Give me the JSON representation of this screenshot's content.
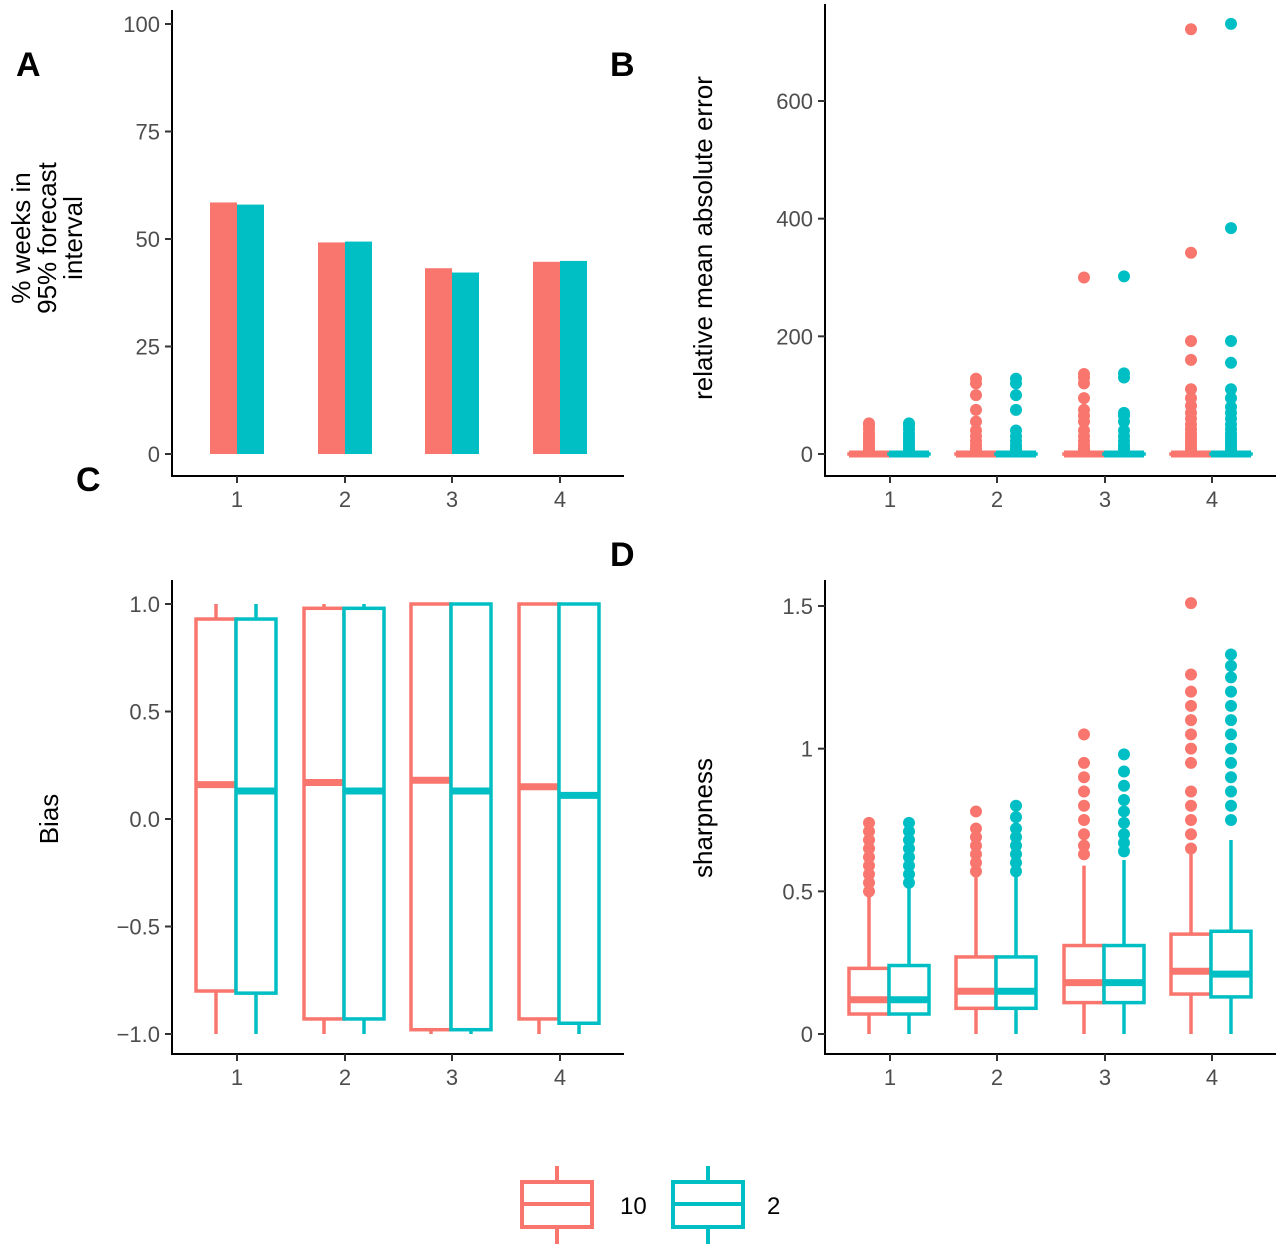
{
  "colors": {
    "s10": "#F8766D",
    "s2": "#00BFC4"
  },
  "legend": {
    "items": [
      {
        "label": "10",
        "color": "#F8766D"
      },
      {
        "label": "2",
        "color": "#00BFC4"
      }
    ]
  },
  "chart_data": [
    {
      "panel": "A",
      "type": "bar",
      "categories": [
        "1",
        "2",
        "3",
        "4"
      ],
      "ylabel": [
        "% weeks in",
        "95% forecast",
        "interval"
      ],
      "ylim": [
        0,
        100
      ],
      "yticks": [
        0,
        25,
        50,
        75,
        100
      ],
      "series": [
        {
          "name": "10",
          "values": [
            58.5,
            49.2,
            43.2,
            44.7
          ]
        },
        {
          "name": "2",
          "values": [
            58.0,
            49.4,
            42.2,
            44.9
          ]
        }
      ]
    },
    {
      "panel": "B",
      "type": "box",
      "categories": [
        "1",
        "2",
        "3",
        "4"
      ],
      "ylabel": "relative mean absolute error",
      "ylim": [
        -35,
        760
      ],
      "yticks": [
        0,
        200,
        400,
        600
      ],
      "series": [
        {
          "name": "10",
          "groups": [
            {
              "min": 0,
              "q1": 0,
              "median": 0,
              "q3": 0,
              "max": 3,
              "outliers": [
                6,
                10,
                15,
                20,
                25,
                30,
                35,
                42,
                48,
                52
              ]
            },
            {
              "min": 0,
              "q1": 0,
              "median": 0,
              "q3": 0,
              "max": 3,
              "outliers": [
                6,
                10,
                15,
                22,
                30,
                40,
                55,
                75,
                100,
                120,
                128
              ]
            },
            {
              "min": 0,
              "q1": 0,
              "median": 0,
              "q3": 0,
              "max": 3,
              "outliers": [
                6,
                10,
                15,
                22,
                30,
                40,
                55,
                65,
                75,
                95,
                120,
                130,
                136,
                300
              ]
            },
            {
              "min": 0,
              "q1": 0,
              "median": 0,
              "q3": 0,
              "max": 3,
              "outliers": [
                6,
                10,
                15,
                20,
                25,
                30,
                35,
                42,
                50,
                60,
                70,
                82,
                95,
                110,
                160,
                192,
                342,
                722
              ]
            }
          ]
        },
        {
          "name": "2",
          "groups": [
            {
              "min": 0,
              "q1": 0,
              "median": 0,
              "q3": 0,
              "max": 3,
              "outliers": [
                6,
                10,
                15,
                20,
                25,
                30,
                35,
                42,
                48,
                52
              ]
            },
            {
              "min": 0,
              "q1": 0,
              "median": 0,
              "q3": 0,
              "max": 3,
              "outliers": [
                6,
                10,
                15,
                22,
                30,
                40,
                75,
                100,
                120,
                128
              ]
            },
            {
              "min": 0,
              "q1": 0,
              "median": 0,
              "q3": 0,
              "max": 3,
              "outliers": [
                6,
                10,
                15,
                22,
                30,
                40,
                55,
                65,
                70,
                130,
                137,
                302
              ]
            },
            {
              "min": 0,
              "q1": 0,
              "median": 0,
              "q3": 0,
              "max": 3,
              "outliers": [
                6,
                10,
                15,
                20,
                25,
                30,
                35,
                42,
                50,
                60,
                70,
                80,
                95,
                110,
                155,
                192,
                384,
                731
              ]
            }
          ]
        }
      ]
    },
    {
      "panel": "C",
      "type": "box",
      "categories": [
        "1",
        "2",
        "3",
        "4"
      ],
      "ylabel": "Bias",
      "ylim": [
        -1.1,
        1.1
      ],
      "yticks": [
        -1.0,
        -0.5,
        0.0,
        0.5,
        1.0
      ],
      "yticklabels": [
        "−1.0",
        "−0.5",
        "0.0",
        "0.5",
        "1.0"
      ],
      "series": [
        {
          "name": "10",
          "groups": [
            {
              "min": -1.0,
              "q1": -0.8,
              "median": 0.16,
              "q3": 0.93,
              "max": 1.0,
              "outliers": []
            },
            {
              "min": -1.0,
              "q1": -0.93,
              "median": 0.17,
              "q3": 0.98,
              "max": 1.0,
              "outliers": []
            },
            {
              "min": -1.0,
              "q1": -0.98,
              "median": 0.18,
              "q3": 1.0,
              "max": 1.0,
              "outliers": []
            },
            {
              "min": -1.0,
              "q1": -0.93,
              "median": 0.15,
              "q3": 1.0,
              "max": 1.0,
              "outliers": []
            }
          ]
        },
        {
          "name": "2",
          "groups": [
            {
              "min": -1.0,
              "q1": -0.81,
              "median": 0.13,
              "q3": 0.93,
              "max": 1.0,
              "outliers": []
            },
            {
              "min": -1.0,
              "q1": -0.93,
              "median": 0.13,
              "q3": 0.98,
              "max": 1.0,
              "outliers": []
            },
            {
              "min": -1.0,
              "q1": -0.98,
              "median": 0.13,
              "q3": 1.0,
              "max": 1.0,
              "outliers": []
            },
            {
              "min": -1.0,
              "q1": -0.95,
              "median": 0.11,
              "q3": 1.0,
              "max": 1.0,
              "outliers": []
            }
          ]
        }
      ]
    },
    {
      "panel": "D",
      "type": "box",
      "categories": [
        "1",
        "2",
        "3",
        "4"
      ],
      "ylabel": "sharpness",
      "ylim": [
        -0.04,
        1.6
      ],
      "yticks": [
        0.0,
        0.5,
        1.0,
        1.5
      ],
      "series": [
        {
          "name": "10",
          "groups": [
            {
              "min": 0.0,
              "q1": 0.07,
              "median": 0.12,
              "q3": 0.23,
              "max": 0.48,
              "outliers": [
                0.5,
                0.53,
                0.56,
                0.59,
                0.62,
                0.65,
                0.68,
                0.71,
                0.74
              ]
            },
            {
              "min": 0.0,
              "q1": 0.09,
              "median": 0.15,
              "q3": 0.27,
              "max": 0.55,
              "outliers": [
                0.57,
                0.6,
                0.63,
                0.66,
                0.69,
                0.72,
                0.78
              ]
            },
            {
              "min": 0.0,
              "q1": 0.11,
              "median": 0.18,
              "q3": 0.31,
              "max": 0.59,
              "outliers": [
                0.63,
                0.66,
                0.7,
                0.75,
                0.8,
                0.85,
                0.9,
                0.95,
                1.05
              ]
            },
            {
              "min": 0.0,
              "q1": 0.14,
              "median": 0.22,
              "q3": 0.35,
              "max": 0.63,
              "outliers": [
                0.65,
                0.7,
                0.75,
                0.8,
                0.85,
                0.95,
                1.0,
                1.05,
                1.1,
                1.15,
                1.2,
                1.26,
                1.51
              ]
            }
          ]
        },
        {
          "name": "2",
          "groups": [
            {
              "min": 0.0,
              "q1": 0.07,
              "median": 0.12,
              "q3": 0.24,
              "max": 0.52,
              "outliers": [
                0.53,
                0.56,
                0.59,
                0.62,
                0.65,
                0.68,
                0.71,
                0.74
              ]
            },
            {
              "min": 0.0,
              "q1": 0.09,
              "median": 0.15,
              "q3": 0.27,
              "max": 0.55,
              "outliers": [
                0.57,
                0.6,
                0.63,
                0.66,
                0.69,
                0.72,
                0.76,
                0.8
              ]
            },
            {
              "min": 0.0,
              "q1": 0.11,
              "median": 0.18,
              "q3": 0.31,
              "max": 0.61,
              "outliers": [
                0.64,
                0.67,
                0.7,
                0.74,
                0.78,
                0.82,
                0.87,
                0.92,
                0.98
              ]
            },
            {
              "min": 0.0,
              "q1": 0.13,
              "median": 0.21,
              "q3": 0.36,
              "max": 0.68,
              "outliers": [
                0.75,
                0.8,
                0.85,
                0.9,
                0.95,
                1.0,
                1.05,
                1.1,
                1.15,
                1.2,
                1.25,
                1.29,
                1.33
              ]
            }
          ]
        }
      ]
    }
  ]
}
